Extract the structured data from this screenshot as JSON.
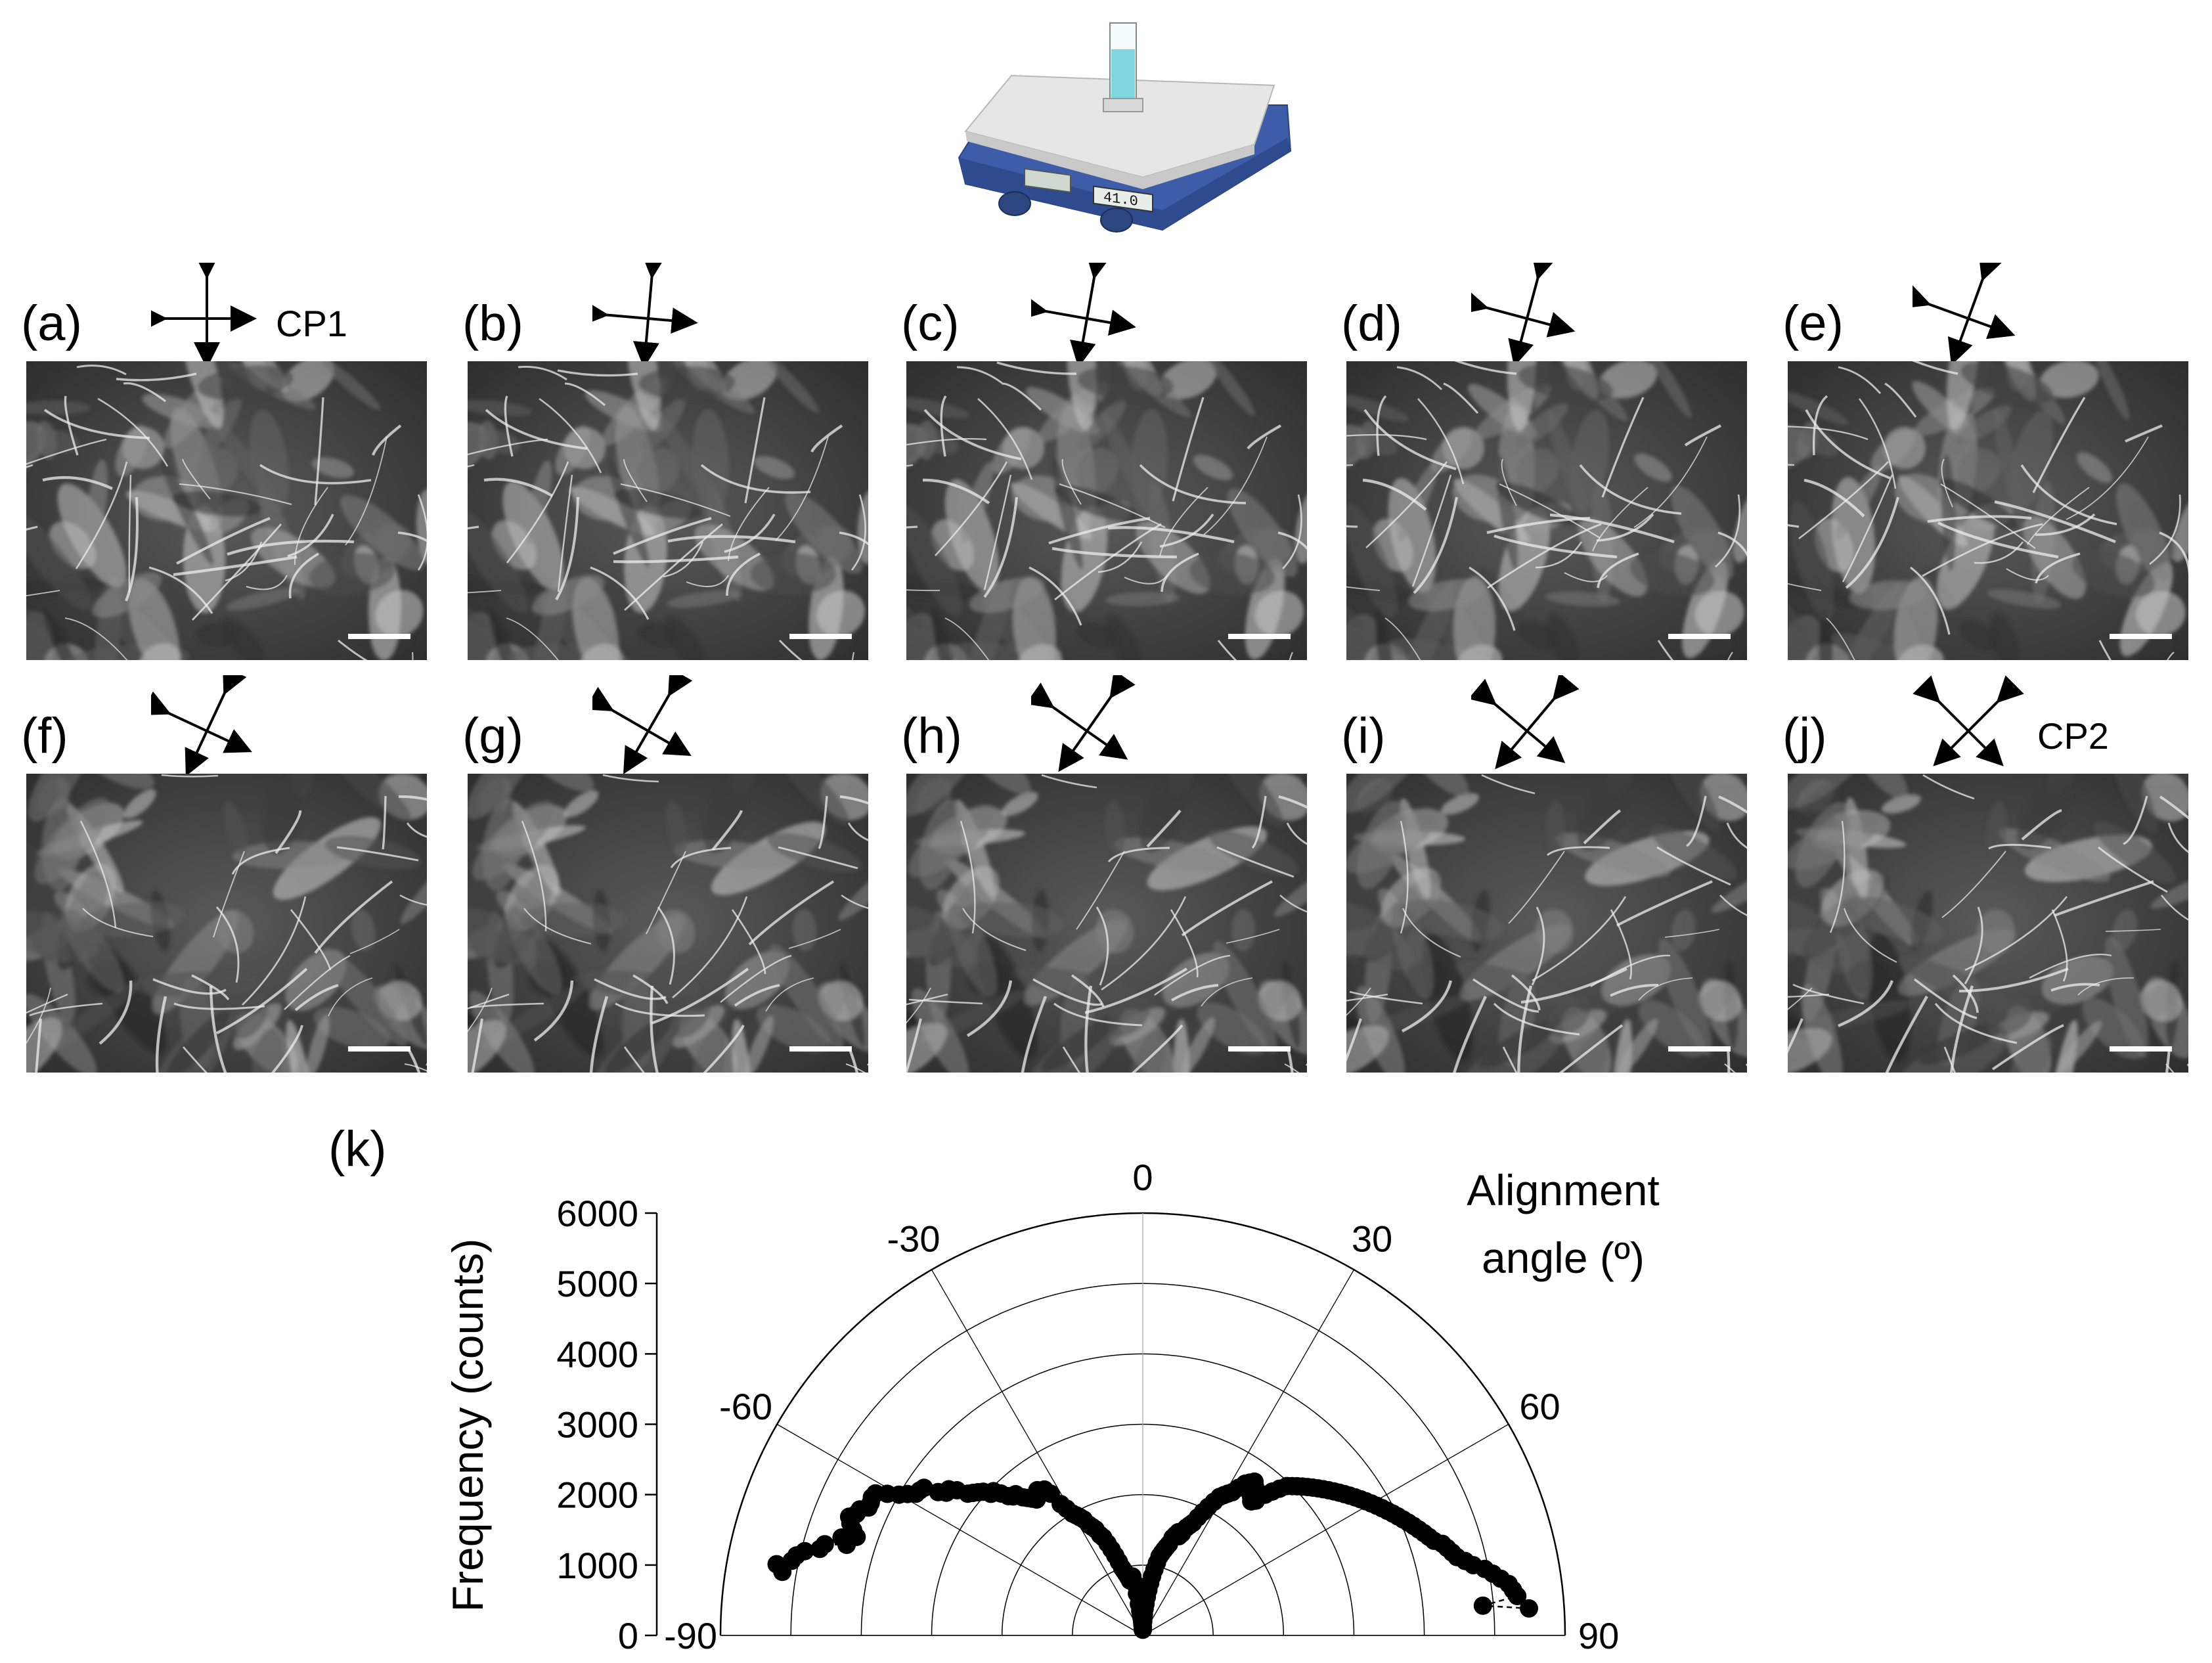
{
  "figure": {
    "panels": [
      {
        "id": "a",
        "label": "(a)",
        "polarizer_angle_deg": 0,
        "cp_label": "CP1"
      },
      {
        "id": "b",
        "label": "(b)",
        "polarizer_angle_deg": 5,
        "cp_label": ""
      },
      {
        "id": "c",
        "label": "(c)",
        "polarizer_angle_deg": 10,
        "cp_label": ""
      },
      {
        "id": "d",
        "label": "(d)",
        "polarizer_angle_deg": 15,
        "cp_label": ""
      },
      {
        "id": "e",
        "label": "(e)",
        "polarizer_angle_deg": 20,
        "cp_label": ""
      },
      {
        "id": "f",
        "label": "(f)",
        "polarizer_angle_deg": 25,
        "cp_label": ""
      },
      {
        "id": "g",
        "label": "(g)",
        "polarizer_angle_deg": 30,
        "cp_label": ""
      },
      {
        "id": "h",
        "label": "(h)",
        "polarizer_angle_deg": 35,
        "cp_label": ""
      },
      {
        "id": "i",
        "label": "(i)",
        "polarizer_angle_deg": 40,
        "cp_label": ""
      },
      {
        "id": "j",
        "label": "(j)",
        "polarizer_angle_deg": 45,
        "cp_label": "CP2"
      }
    ],
    "hotplate": {
      "display_text": "41.0",
      "body_color": "#3d5da8",
      "top_color": "#e6e6e6",
      "liquid_color": "#7fd6df"
    },
    "chart_label": "(k)"
  },
  "chart_data": {
    "type": "scatter",
    "polar": true,
    "angular_range": [
      -90,
      90
    ],
    "angular_ticks": [
      -90,
      -60,
      -30,
      0,
      30,
      60,
      90
    ],
    "angular_tick_labels": [
      "-90",
      "-60",
      "-30",
      "0",
      "30",
      "60",
      "90"
    ],
    "radial_range": [
      0,
      6000
    ],
    "radial_ticks": [
      0,
      1000,
      2000,
      3000,
      4000,
      5000,
      6000
    ],
    "radial_tick_labels": [
      "0",
      "1000",
      "2000",
      "3000",
      "4000",
      "5000",
      "6000"
    ],
    "ylabel": "Frequency (counts)",
    "angle_label_line1": "Alignment",
    "angle_label_line2": "angle (º)",
    "marker_color": "#000000",
    "points": [
      {
        "angle": -80,
        "r": 5200
      },
      {
        "angle": -79,
        "r": 5300
      },
      {
        "angle": -78,
        "r": 5100
      },
      {
        "angle": -77,
        "r": 5050
      },
      {
        "angle": -76,
        "r": 4950
      },
      {
        "angle": -75,
        "r": 4750
      },
      {
        "angle": -74,
        "r": 4700
      },
      {
        "angle": -73,
        "r": 4400
      },
      {
        "angle": -72,
        "r": 4500
      },
      {
        "angle": -71,
        "r": 4300
      },
      {
        "angle": -70,
        "r": 4380
      },
      {
        "angle": -69,
        "r": 4450
      },
      {
        "angle": -68,
        "r": 4500
      },
      {
        "angle": -67,
        "r": 4420
      },
      {
        "angle": -66,
        "r": 4400
      },
      {
        "angle": -65,
        "r": 4300
      },
      {
        "angle": -64,
        "r": 4300
      },
      {
        "angle": -63,
        "r": 4320
      },
      {
        "angle": -62,
        "r": 4300
      },
      {
        "angle": -61,
        "r": 4150
      },
      {
        "angle": -60,
        "r": 4000
      },
      {
        "angle": -59,
        "r": 3900
      },
      {
        "angle": -58,
        "r": 3800
      },
      {
        "angle": -57,
        "r": 3780
      },
      {
        "angle": -56,
        "r": 3750
      },
      {
        "angle": -55,
        "r": 3550
      },
      {
        "angle": -54,
        "r": 3450
      },
      {
        "angle": -53,
        "r": 3450
      },
      {
        "angle": -52,
        "r": 3350
      },
      {
        "angle": -51,
        "r": 3200
      },
      {
        "angle": -50,
        "r": 3150
      },
      {
        "angle": -49,
        "r": 3100
      },
      {
        "angle": -48,
        "r": 3050
      },
      {
        "angle": -47,
        "r": 2950
      },
      {
        "angle": -46,
        "r": 2950
      },
      {
        "angle": -45,
        "r": 2850
      },
      {
        "angle": -44,
        "r": 2750
      },
      {
        "angle": -43,
        "r": 2700
      },
      {
        "angle": -42,
        "r": 2700
      },
      {
        "angle": -41,
        "r": 2600
      },
      {
        "angle": -40,
        "r": 2550
      },
      {
        "angle": -39,
        "r": 2500
      },
      {
        "angle": -38,
        "r": 2450
      },
      {
        "angle": -37,
        "r": 2500
      },
      {
        "angle": -36,
        "r": 2550
      },
      {
        "angle": -35,
        "r": 2500
      },
      {
        "angle": -34,
        "r": 2500
      },
      {
        "angle": -33,
        "r": 2400
      },
      {
        "angle": -32,
        "r": 2200
      },
      {
        "angle": -31,
        "r": 2100
      },
      {
        "angle": -30,
        "r": 2000
      },
      {
        "angle": -29,
        "r": 1950
      },
      {
        "angle": -28,
        "r": 1900
      },
      {
        "angle": -27,
        "r": 1850
      },
      {
        "angle": -26,
        "r": 1750
      },
      {
        "angle": -25,
        "r": 1700
      },
      {
        "angle": -24,
        "r": 1650
      },
      {
        "angle": -23,
        "r": 1550
      },
      {
        "angle": -22,
        "r": 1500
      },
      {
        "angle": -21,
        "r": 1400
      },
      {
        "angle": -20,
        "r": 1300
      },
      {
        "angle": -19,
        "r": 1200
      },
      {
        "angle": -18,
        "r": 1100
      },
      {
        "angle": -17,
        "r": 1000
      },
      {
        "angle": -16,
        "r": 950
      },
      {
        "angle": -15,
        "r": 900
      },
      {
        "angle": -14,
        "r": 850
      },
      {
        "angle": -13,
        "r": 800
      },
      {
        "angle": -12,
        "r": 800
      },
      {
        "angle": -11,
        "r": 800
      },
      {
        "angle": -10,
        "r": 850
      },
      {
        "angle": -9,
        "r": 750
      },
      {
        "angle": -8,
        "r": 600
      },
      {
        "angle": -7,
        "r": 450
      },
      {
        "angle": -6,
        "r": 350
      },
      {
        "angle": -5,
        "r": 300
      },
      {
        "angle": -4,
        "r": 250
      },
      {
        "angle": -3,
        "r": 200
      },
      {
        "angle": -2,
        "r": 150
      },
      {
        "angle": -1,
        "r": 100
      },
      {
        "angle": 0,
        "r": 80
      },
      {
        "angle": 1,
        "r": 120
      },
      {
        "angle": 2,
        "r": 200
      },
      {
        "angle": 3,
        "r": 300
      },
      {
        "angle": 4,
        "r": 380
      },
      {
        "angle": 5,
        "r": 450
      },
      {
        "angle": 6,
        "r": 550
      },
      {
        "angle": 7,
        "r": 650
      },
      {
        "angle": 8,
        "r": 750
      },
      {
        "angle": 9,
        "r": 850
      },
      {
        "angle": 10,
        "r": 950
      },
      {
        "angle": 11,
        "r": 1050
      },
      {
        "angle": 12,
        "r": 1150
      },
      {
        "angle": 13,
        "r": 1200
      },
      {
        "angle": 14,
        "r": 1250
      },
      {
        "angle": 15,
        "r": 1300
      },
      {
        "angle": 16,
        "r": 1350
      },
      {
        "angle": 17,
        "r": 1450
      },
      {
        "angle": 18,
        "r": 1500
      },
      {
        "angle": 19,
        "r": 1550
      },
      {
        "angle": 20,
        "r": 1500
      },
      {
        "angle": 21,
        "r": 1550
      },
      {
        "angle": 22,
        "r": 1650
      },
      {
        "angle": 23,
        "r": 1700
      },
      {
        "angle": 24,
        "r": 1750
      },
      {
        "angle": 25,
        "r": 1850
      },
      {
        "angle": 26,
        "r": 1950
      },
      {
        "angle": 27,
        "r": 2050
      },
      {
        "angle": 28,
        "r": 2150
      },
      {
        "angle": 29,
        "r": 2250
      },
      {
        "angle": 30,
        "r": 2300
      },
      {
        "angle": 31,
        "r": 2350
      },
      {
        "angle": 32,
        "r": 2400
      },
      {
        "angle": 33,
        "r": 2500
      },
      {
        "angle": 34,
        "r": 2600
      },
      {
        "angle": 35,
        "r": 2650
      },
      {
        "angle": 36,
        "r": 2700
      },
      {
        "angle": 37,
        "r": 2650
      },
      {
        "angle": 38,
        "r": 2500
      },
      {
        "angle": 39,
        "r": 2450
      },
      {
        "angle": 40,
        "r": 2500
      },
      {
        "angle": 41,
        "r": 2650
      },
      {
        "angle": 42,
        "r": 2750
      },
      {
        "angle": 43,
        "r": 2850
      },
      {
        "angle": 44,
        "r": 2950
      },
      {
        "angle": 45,
        "r": 3000
      },
      {
        "angle": 46,
        "r": 3050
      },
      {
        "angle": 47,
        "r": 3100
      },
      {
        "angle": 48,
        "r": 3150
      },
      {
        "angle": 49,
        "r": 3200
      },
      {
        "angle": 50,
        "r": 3250
      },
      {
        "angle": 51,
        "r": 3300
      },
      {
        "angle": 52,
        "r": 3350
      },
      {
        "angle": 53,
        "r": 3400
      },
      {
        "angle": 54,
        "r": 3450
      },
      {
        "angle": 55,
        "r": 3500
      },
      {
        "angle": 56,
        "r": 3550
      },
      {
        "angle": 57,
        "r": 3600
      },
      {
        "angle": 58,
        "r": 3650
      },
      {
        "angle": 59,
        "r": 3700
      },
      {
        "angle": 60,
        "r": 3750
      },
      {
        "angle": 61,
        "r": 3800
      },
      {
        "angle": 62,
        "r": 3850
      },
      {
        "angle": 63,
        "r": 3900
      },
      {
        "angle": 64,
        "r": 3950
      },
      {
        "angle": 65,
        "r": 4000
      },
      {
        "angle": 66,
        "r": 4050
      },
      {
        "angle": 67,
        "r": 4100
      },
      {
        "angle": 68,
        "r": 4150
      },
      {
        "angle": 69,
        "r": 4200
      },
      {
        "angle": 70,
        "r": 4250
      },
      {
        "angle": 71,
        "r": 4300
      },
      {
        "angle": 72,
        "r": 4350
      },
      {
        "angle": 73,
        "r": 4450
      },
      {
        "angle": 74,
        "r": 4500
      },
      {
        "angle": 75,
        "r": 4550
      },
      {
        "angle": 76,
        "r": 4600
      },
      {
        "angle": 77,
        "r": 4700
      },
      {
        "angle": 78,
        "r": 4800
      },
      {
        "angle": 79,
        "r": 4950
      },
      {
        "angle": 80,
        "r": 5050
      },
      {
        "angle": 81,
        "r": 5150
      },
      {
        "angle": 82,
        "r": 5250
      },
      {
        "angle": 83,
        "r": 5300
      },
      {
        "angle": 84,
        "r": 5350
      },
      {
        "angle": 85,
        "r": 4850
      },
      {
        "angle": 86,
        "r": 5500
      }
    ]
  }
}
